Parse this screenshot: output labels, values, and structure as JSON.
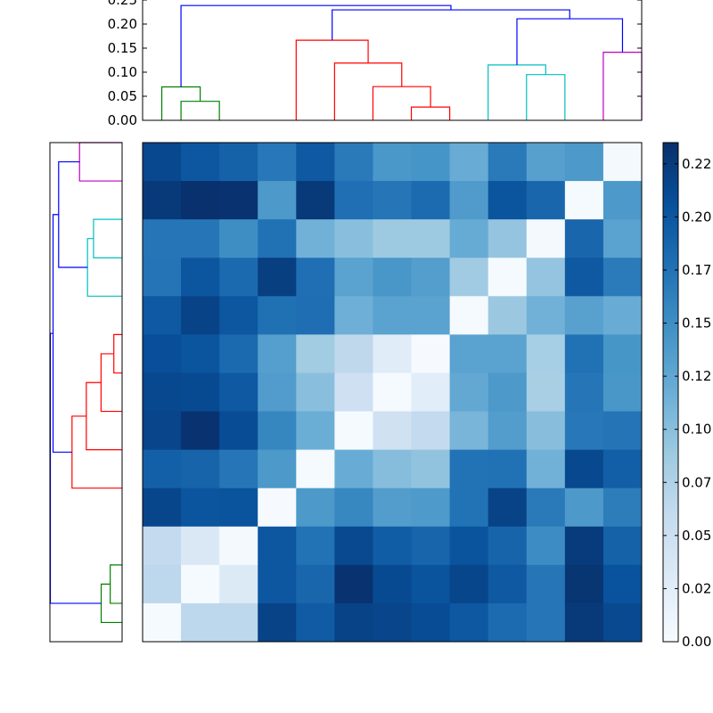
{
  "chart_data": {
    "type": "heatmap",
    "title": "",
    "n": 13,
    "matrix": [
      [
        0.214,
        0.2,
        0.19,
        0.17,
        0.198,
        0.168,
        0.141,
        0.144,
        0.12,
        0.168,
        0.132,
        0.14,
        0.003
      ],
      [
        0.226,
        0.234,
        0.232,
        0.14,
        0.226,
        0.178,
        0.172,
        0.182,
        0.137,
        0.202,
        0.186,
        0.002,
        0.14
      ],
      [
        0.172,
        0.172,
        0.15,
        0.176,
        0.114,
        0.1,
        0.088,
        0.088,
        0.121,
        0.094,
        0.003,
        0.186,
        0.13
      ],
      [
        0.174,
        0.201,
        0.183,
        0.222,
        0.178,
        0.13,
        0.142,
        0.134,
        0.087,
        0.002,
        0.094,
        0.198,
        0.167
      ],
      [
        0.198,
        0.218,
        0.2,
        0.177,
        0.179,
        0.116,
        0.13,
        0.13,
        0.002,
        0.09,
        0.114,
        0.131,
        0.12
      ],
      [
        0.208,
        0.202,
        0.183,
        0.133,
        0.085,
        0.064,
        0.027,
        0.001,
        0.13,
        0.13,
        0.082,
        0.176,
        0.143
      ],
      [
        0.214,
        0.212,
        0.198,
        0.136,
        0.1,
        0.049,
        0.002,
        0.026,
        0.124,
        0.14,
        0.08,
        0.172,
        0.142
      ],
      [
        0.216,
        0.232,
        0.21,
        0.158,
        0.118,
        0.002,
        0.047,
        0.06,
        0.11,
        0.135,
        0.101,
        0.17,
        0.174
      ],
      [
        0.192,
        0.188,
        0.172,
        0.14,
        0.002,
        0.12,
        0.102,
        0.095,
        0.175,
        0.176,
        0.114,
        0.214,
        0.193
      ],
      [
        0.215,
        0.202,
        0.203,
        0.001,
        0.14,
        0.157,
        0.135,
        0.138,
        0.175,
        0.218,
        0.168,
        0.14,
        0.166
      ],
      [
        0.06,
        0.034,
        0.004,
        0.2,
        0.175,
        0.213,
        0.195,
        0.187,
        0.203,
        0.188,
        0.151,
        0.225,
        0.19
      ],
      [
        0.065,
        0.002,
        0.032,
        0.2,
        0.186,
        0.232,
        0.212,
        0.203,
        0.215,
        0.198,
        0.172,
        0.23,
        0.205
      ],
      [
        0.002,
        0.065,
        0.065,
        0.218,
        0.196,
        0.218,
        0.216,
        0.21,
        0.199,
        0.182,
        0.172,
        0.226,
        0.213
      ]
    ],
    "color_scale": "Blues",
    "colorbar": {
      "vmin": 0,
      "vmax": 0.235,
      "ticks": [
        0.0,
        0.025,
        0.05,
        0.075,
        0.1,
        0.125,
        0.15,
        0.175,
        0.2,
        0.225
      ],
      "tick_labels": [
        "0.00",
        "0.02",
        "0.05",
        "0.07",
        "0.10",
        "0.12",
        "0.15",
        "0.17",
        "0.20",
        "0.22"
      ]
    },
    "top_dendrogram": {
      "ylim": [
        0,
        0.25
      ],
      "ticks": [
        0.0,
        0.05,
        0.1,
        0.15,
        0.2,
        0.25
      ],
      "tick_labels": [
        "0.00",
        "0.05",
        "0.10",
        "0.15",
        "0.20",
        "0.25"
      ],
      "leaves": 13,
      "links": [
        {
          "a": 0.5,
          "b": 1.5,
          "ha": 0,
          "hb": 0,
          "h": 0.0395,
          "c": "#008000"
        },
        {
          "a": 0,
          "b": 1,
          "ha": 0,
          "hb": 0.0395,
          "h": 0.0695,
          "c": "#008000"
        },
        {
          "a": 6.5,
          "b": 7.5,
          "ha": 0,
          "hb": 0,
          "h": 0.0275,
          "c": "#ff0000"
        },
        {
          "a": 5.5,
          "b": 7,
          "ha": 0,
          "hb": 0.0275,
          "h": 0.07,
          "c": "#ff0000"
        },
        {
          "a": 4.5,
          "b": 6.25,
          "ha": 0,
          "hb": 0.07,
          "h": 0.119,
          "c": "#ff0000"
        },
        {
          "a": 3.5,
          "b": 5.375,
          "ha": 0,
          "hb": 0.119,
          "h": 0.1665,
          "c": "#ff0000"
        },
        {
          "a": 9.5,
          "b": 10.5,
          "ha": 0,
          "hb": 0,
          "h": 0.095,
          "c": "#00bfbf"
        },
        {
          "a": 8.5,
          "b": 10,
          "ha": 0,
          "hb": 0.095,
          "h": 0.115,
          "c": "#00bfbf"
        },
        {
          "a": 11.5,
          "b": 12.5,
          "ha": 0,
          "hb": 0,
          "h": 0.1415,
          "c": "#bf00bf"
        },
        {
          "a": 9.25,
          "b": 12,
          "ha": 0.115,
          "hb": 0.1415,
          "h": 0.211,
          "c": "#0000ff"
        },
        {
          "a": 4.4375,
          "b": 10.625,
          "ha": 0.1665,
          "hb": 0.211,
          "h": 0.2295,
          "c": "#0000ff"
        },
        {
          "a": 0.5,
          "b": 7.53125,
          "ha": 0.0695,
          "hb": 0.2295,
          "h": 0.2385,
          "c": "#0000ff"
        }
      ]
    }
  }
}
